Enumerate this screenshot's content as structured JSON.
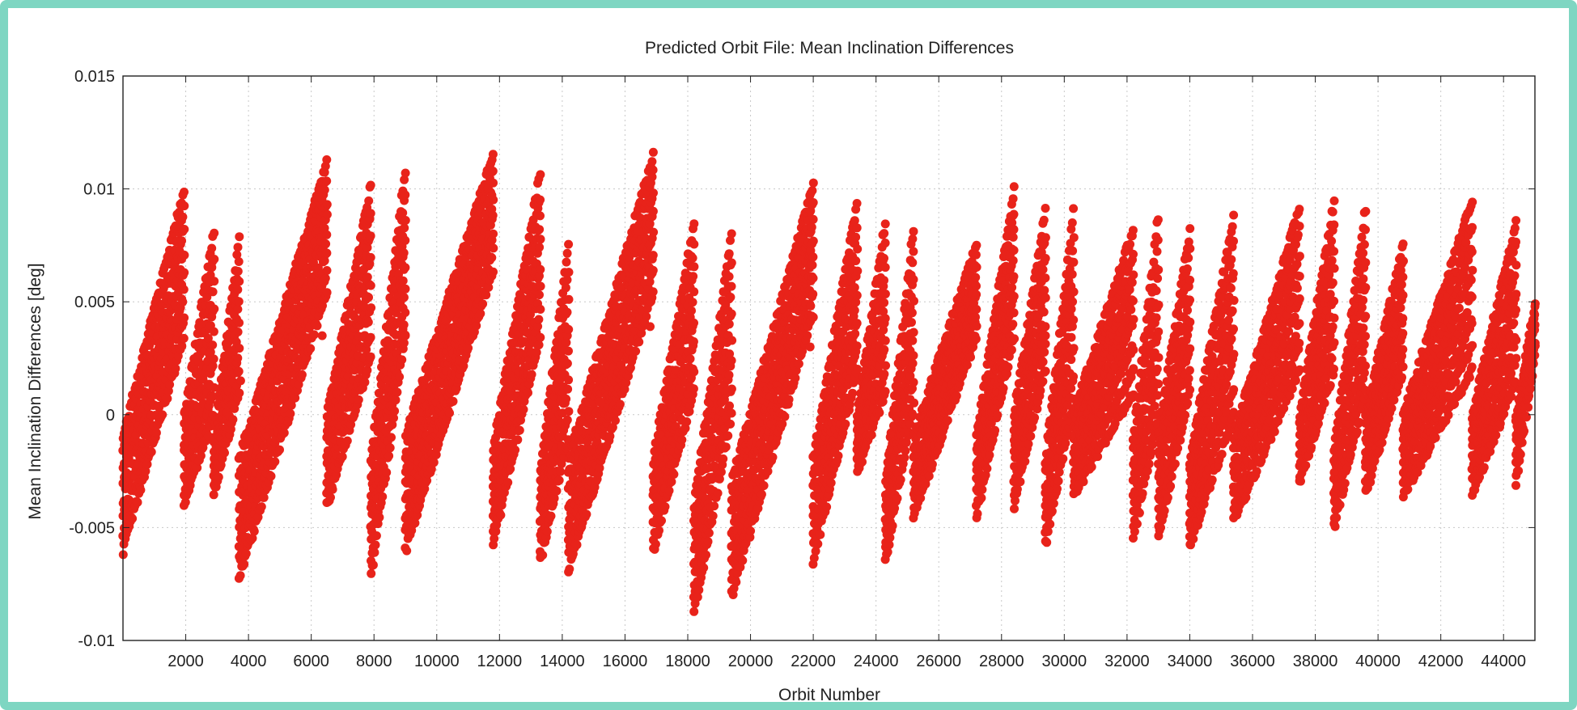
{
  "chart_data": {
    "type": "scatter",
    "title": "Predicted Orbit File: Mean Inclination Differences",
    "xlabel": "Orbit Number",
    "ylabel": "Mean Inclination Differences [deg]",
    "xlim": [
      0,
      45000
    ],
    "ylim": [
      -0.01,
      0.015
    ],
    "xticks": [
      2000,
      4000,
      6000,
      8000,
      10000,
      12000,
      14000,
      16000,
      18000,
      20000,
      22000,
      24000,
      26000,
      28000,
      30000,
      32000,
      34000,
      36000,
      38000,
      40000,
      42000,
      44000
    ],
    "xtick_labels": [
      "2000",
      "4000",
      "6000",
      "8000",
      "10000",
      "12000",
      "14000",
      "16000",
      "18000",
      "20000",
      "22000",
      "24000",
      "26000",
      "28000",
      "30000",
      "32000",
      "34000",
      "36000",
      "38000",
      "40000",
      "42000",
      "44000"
    ],
    "yticks": [
      -0.01,
      -0.005,
      0,
      0.005,
      0.01,
      0.015
    ],
    "ytick_labels": [
      "-0.01",
      "-0.005",
      "0",
      "0.005",
      "0.01",
      "0.015"
    ],
    "grid": true,
    "series": [
      {
        "color": "#e8231a",
        "segments": [
          {
            "x0": 0,
            "x1": 1950,
            "ylow0": -0.006,
            "ylow1": 0.0035,
            "yhigh0": -0.001,
            "yhigh1": 0.01
          },
          {
            "x0": 1950,
            "x1": 2900,
            "ylow0": -0.004,
            "ylow1": 0.0,
            "yhigh0": 0.0,
            "yhigh1": 0.0082
          },
          {
            "x0": 2900,
            "x1": 3700,
            "ylow0": -0.0035,
            "ylow1": 0.001,
            "yhigh0": -0.001,
            "yhigh1": 0.0078
          },
          {
            "x0": 3700,
            "x1": 6500,
            "ylow0": -0.0072,
            "ylow1": 0.0055,
            "yhigh0": -0.002,
            "yhigh1": 0.0111
          },
          {
            "x0": 6500,
            "x1": 7900,
            "ylow0": -0.004,
            "ylow1": 0.0025,
            "yhigh0": 0.0,
            "yhigh1": 0.0102
          },
          {
            "x0": 7900,
            "x1": 9000,
            "ylow0": -0.0072,
            "ylow1": 0.0035,
            "yhigh0": -0.002,
            "yhigh1": 0.0109
          },
          {
            "x0": 9000,
            "x1": 11800,
            "ylow0": -0.006,
            "ylow1": 0.0065,
            "yhigh0": -0.001,
            "yhigh1": 0.0115
          },
          {
            "x0": 11800,
            "x1": 13300,
            "ylow0": -0.0057,
            "ylow1": 0.0035,
            "yhigh0": -0.0015,
            "yhigh1": 0.0107
          },
          {
            "x0": 13300,
            "x1": 14200,
            "ylow0": -0.0065,
            "ylow1": -0.001,
            "yhigh0": -0.0025,
            "yhigh1": 0.0075
          },
          {
            "x0": 14200,
            "x1": 16900,
            "ylow0": -0.0069,
            "ylow1": 0.0055,
            "yhigh0": -0.002,
            "yhigh1": 0.0115
          },
          {
            "x0": 16900,
            "x1": 18200,
            "ylow0": -0.006,
            "ylow1": 0.001,
            "yhigh0": -0.002,
            "yhigh1": 0.0085
          },
          {
            "x0": 18200,
            "x1": 19400,
            "ylow0": -0.0088,
            "ylow1": 0.0,
            "yhigh0": -0.004,
            "yhigh1": 0.008
          },
          {
            "x0": 19400,
            "x1": 22000,
            "ylow0": -0.008,
            "ylow1": 0.0045,
            "yhigh0": -0.003,
            "yhigh1": 0.0102
          },
          {
            "x0": 22000,
            "x1": 23400,
            "ylow0": -0.0065,
            "ylow1": 0.002,
            "yhigh0": -0.002,
            "yhigh1": 0.0094
          },
          {
            "x0": 23400,
            "x1": 24300,
            "ylow0": -0.0025,
            "ylow1": 0.001,
            "yhigh0": 0.0,
            "yhigh1": 0.0085
          },
          {
            "x0": 24300,
            "x1": 25200,
            "ylow0": -0.0065,
            "ylow1": 0.0005,
            "yhigh0": -0.003,
            "yhigh1": 0.0083
          },
          {
            "x0": 25200,
            "x1": 27200,
            "ylow0": -0.0045,
            "ylow1": 0.0035,
            "yhigh0": -0.001,
            "yhigh1": 0.0075
          },
          {
            "x0": 27200,
            "x1": 28400,
            "ylow0": -0.0045,
            "ylow1": 0.0035,
            "yhigh0": -0.001,
            "yhigh1": 0.01
          },
          {
            "x0": 28400,
            "x1": 29400,
            "ylow0": -0.004,
            "ylow1": 0.002,
            "yhigh0": 0.0,
            "yhigh1": 0.009
          },
          {
            "x0": 29400,
            "x1": 30300,
            "ylow0": -0.0058,
            "ylow1": 0.0005,
            "yhigh0": -0.002,
            "yhigh1": 0.009
          },
          {
            "x0": 30300,
            "x1": 32200,
            "ylow0": -0.0035,
            "ylow1": 0.001,
            "yhigh0": 0.0,
            "yhigh1": 0.0082
          },
          {
            "x0": 32200,
            "x1": 33000,
            "ylow0": -0.0055,
            "ylow1": 0.0,
            "yhigh0": -0.001,
            "yhigh1": 0.0088
          },
          {
            "x0": 33000,
            "x1": 34000,
            "ylow0": -0.0055,
            "ylow1": 0.001,
            "yhigh0": -0.001,
            "yhigh1": 0.0082
          },
          {
            "x0": 34000,
            "x1": 35400,
            "ylow0": -0.0058,
            "ylow1": 0.0,
            "yhigh0": -0.002,
            "yhigh1": 0.0088
          },
          {
            "x0": 35400,
            "x1": 37500,
            "ylow0": -0.0047,
            "ylow1": 0.002,
            "yhigh0": -0.001,
            "yhigh1": 0.0092
          },
          {
            "x0": 37500,
            "x1": 38600,
            "ylow0": -0.003,
            "ylow1": 0.002,
            "yhigh0": 0.0,
            "yhigh1": 0.0095
          },
          {
            "x0": 38600,
            "x1": 39600,
            "ylow0": -0.005,
            "ylow1": 0.001,
            "yhigh0": -0.0015,
            "yhigh1": 0.0092
          },
          {
            "x0": 39600,
            "x1": 40800,
            "ylow0": -0.0035,
            "ylow1": 0.002,
            "yhigh0": 0.0,
            "yhigh1": 0.0075
          },
          {
            "x0": 40800,
            "x1": 43000,
            "ylow0": -0.0035,
            "ylow1": 0.002,
            "yhigh0": 0.0,
            "yhigh1": 0.0095
          },
          {
            "x0": 43000,
            "x1": 44400,
            "ylow0": -0.0035,
            "ylow1": 0.0015,
            "yhigh0": 0.0,
            "yhigh1": 0.0085
          },
          {
            "x0": 44400,
            "x1": 45000,
            "ylow0": -0.003,
            "ylow1": 0.0025,
            "yhigh0": 0.0,
            "yhigh1": 0.005
          }
        ],
        "isolated_points": [
          {
            "x": 3750,
            "y": 0.0015
          },
          {
            "x": 6350,
            "y": 0.0035
          },
          {
            "x": 9000,
            "y": 0.0035
          },
          {
            "x": 16800,
            "y": 0.0039
          },
          {
            "x": 18100,
            "y": 0.0012
          },
          {
            "x": 21900,
            "y": 0.003
          },
          {
            "x": 29400,
            "y": 0.0035
          }
        ]
      }
    ]
  }
}
